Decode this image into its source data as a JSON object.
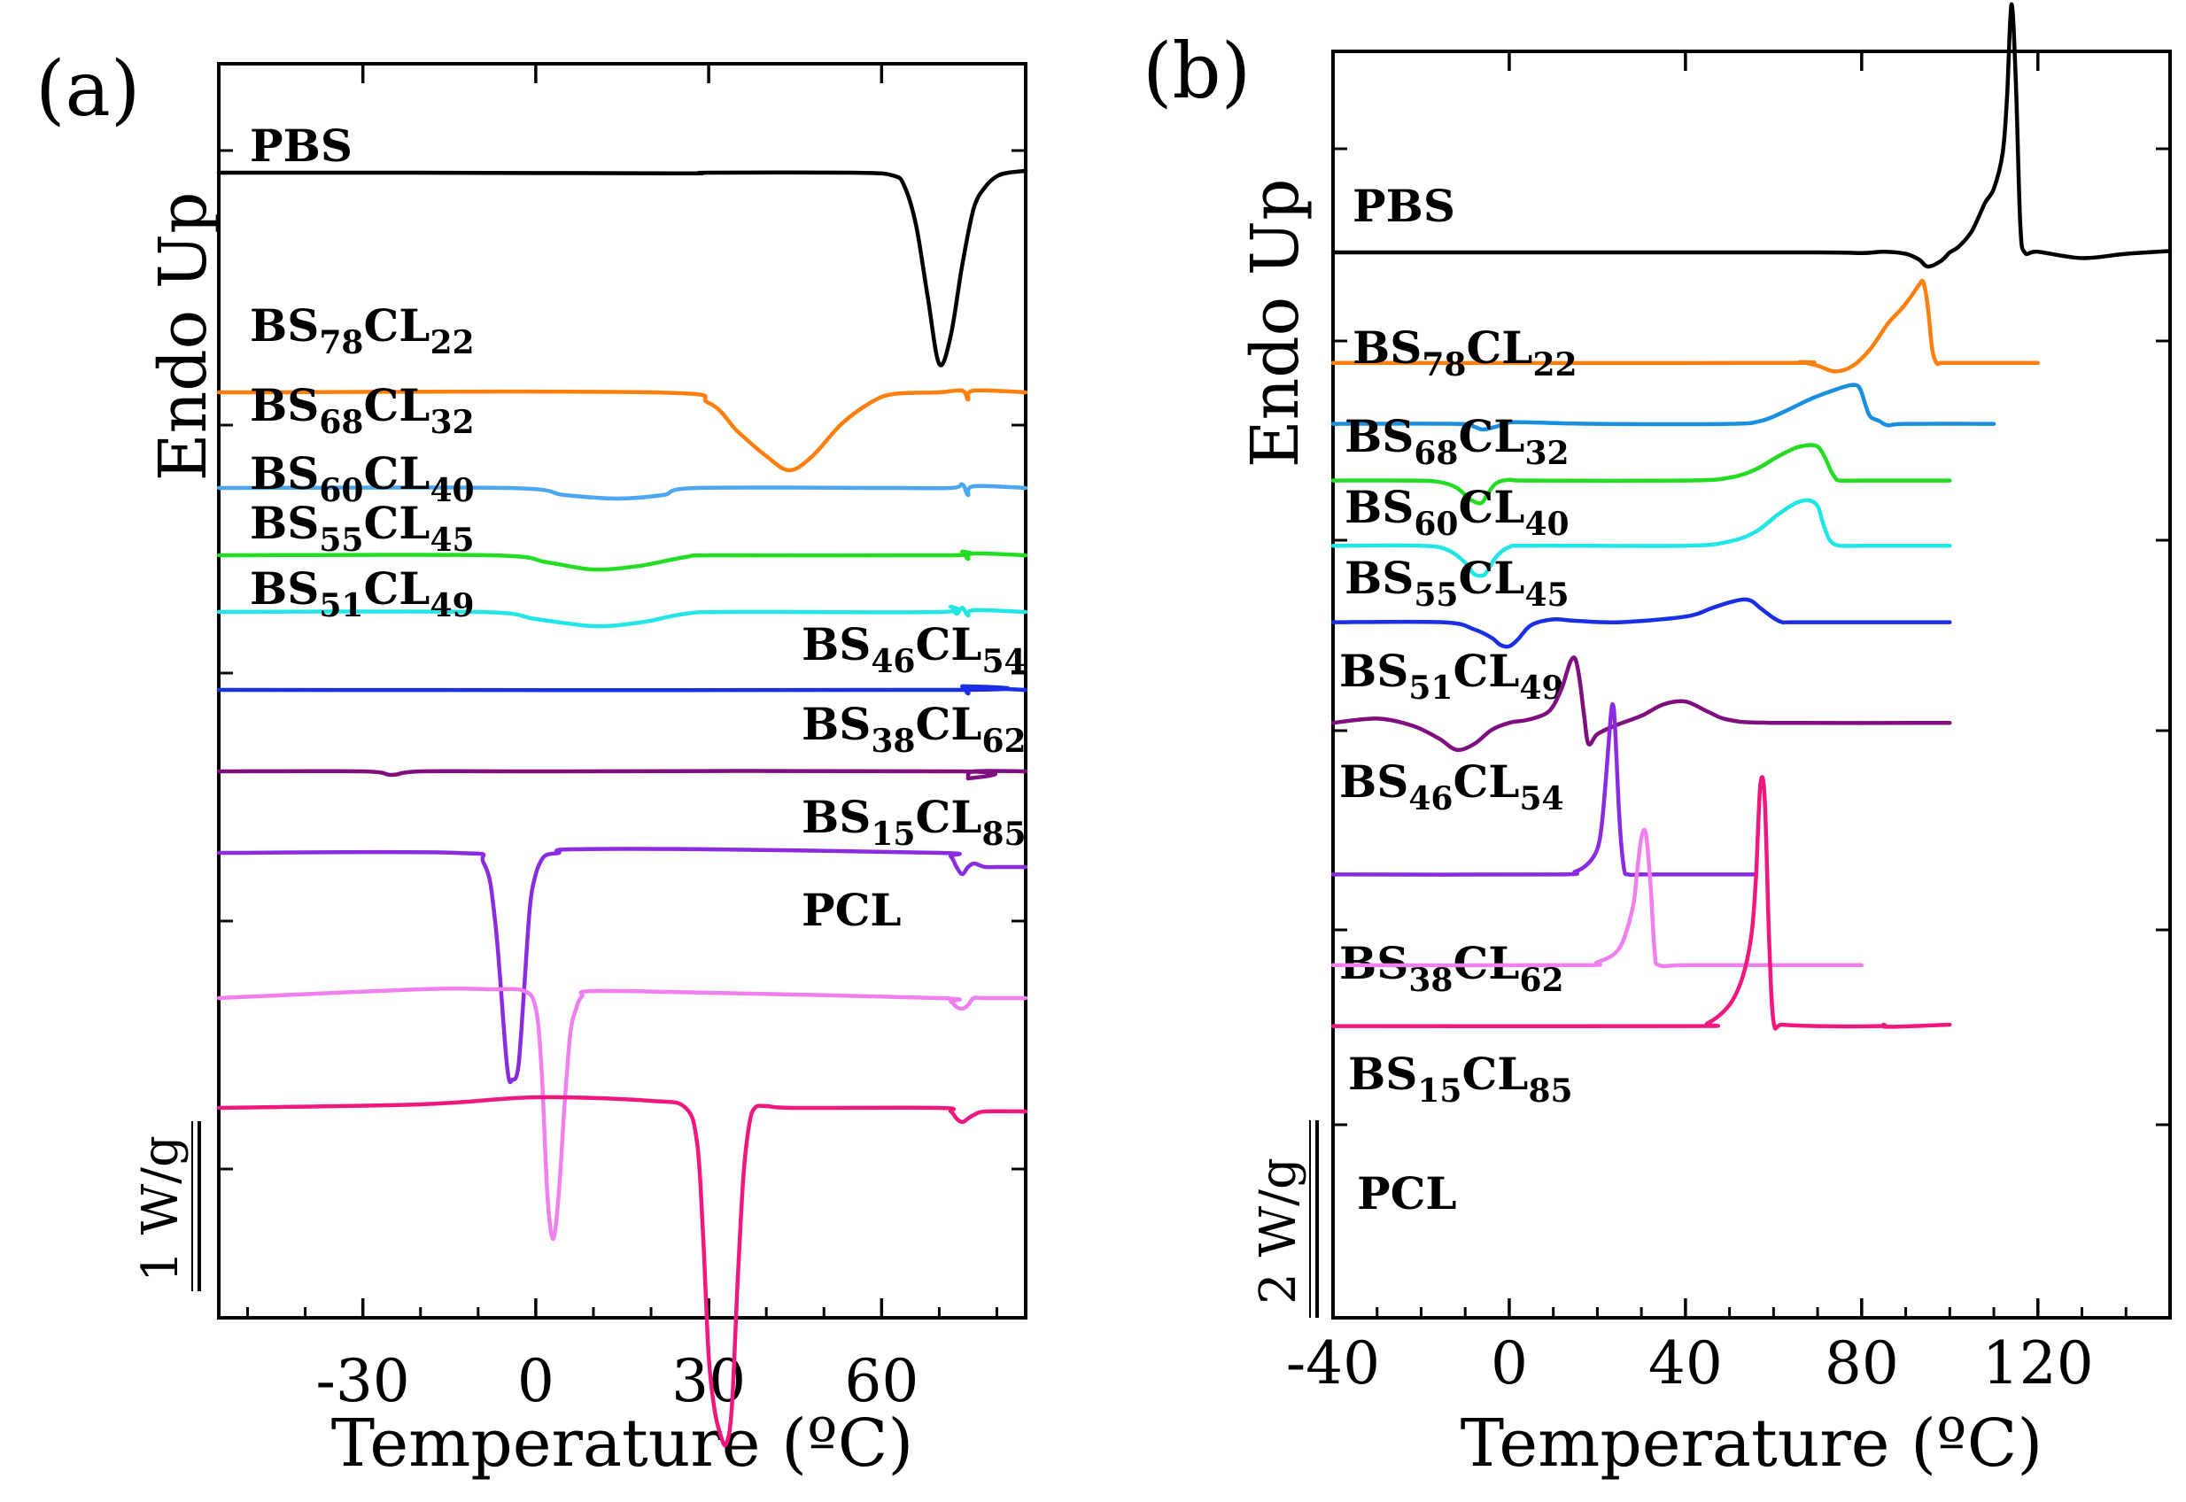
{
  "chart_data": [
    {
      "type": "line",
      "panel": "(a)",
      "xlabel": "Temperature (ºC)",
      "ylabel": "Endo Up",
      "xlim": [
        -55,
        85
      ],
      "xticks": [
        -30,
        0,
        30,
        60
      ],
      "scale_bar": "1 W/g",
      "series": [
        {
          "name": "PBS",
          "base": "PBS",
          "sub1": "",
          "mid": "",
          "sub2": "",
          "color": "#000000",
          "offset": 0,
          "x": [
            -55,
            -20,
            25,
            30,
            55,
            62,
            64,
            66,
            68,
            70,
            72,
            74,
            76,
            78,
            80,
            82,
            85
          ],
          "y": [
            0.0,
            0.0,
            -0.002,
            0.0,
            0.0,
            -0.008,
            -0.04,
            -0.15,
            -0.35,
            -0.54,
            -0.46,
            -0.26,
            -0.1,
            -0.04,
            -0.01,
            0.0,
            0.005
          ]
        },
        {
          "name": "BS78CL22",
          "base": "BS",
          "sub1": "78",
          "mid": "CL",
          "sub2": "22",
          "color": "#ff7f0e",
          "offset": -0.62,
          "x": [
            -55,
            20,
            30,
            35,
            40,
            44,
            48,
            53,
            58,
            62,
            70,
            74,
            75,
            76,
            85
          ],
          "y": [
            0.0,
            0.0,
            -0.03,
            -0.11,
            -0.18,
            -0.22,
            -0.18,
            -0.09,
            -0.03,
            -0.005,
            0.0,
            0.005,
            -0.02,
            0.005,
            0.0
          ]
        },
        {
          "name": "BS68CL32",
          "base": "BS",
          "sub1": "68",
          "mid": "CL",
          "sub2": "32",
          "color": "#4da6f0",
          "offset": -0.89,
          "x": [
            -55,
            -5,
            5,
            14,
            22,
            28,
            60,
            72,
            74,
            75,
            76,
            85
          ],
          "y": [
            0.0,
            0.0,
            -0.02,
            -0.03,
            -0.02,
            0.0,
            0.0,
            0.0,
            0.01,
            -0.02,
            0.005,
            0.0
          ]
        },
        {
          "name": "BS60CL40",
          "base": "BS",
          "sub1": "60",
          "mid": "CL",
          "sub2": "40",
          "color": "#22dd22",
          "offset": -1.08,
          "x": [
            -55,
            -8,
            2,
            10,
            18,
            26,
            32,
            72,
            74,
            75,
            76,
            85
          ],
          "y": [
            0.0,
            0.0,
            -0.02,
            -0.04,
            -0.03,
            -0.005,
            0.0,
            0.0,
            0.01,
            -0.01,
            0.005,
            0.0
          ]
        },
        {
          "name": "BS55CL45",
          "base": "BS",
          "sub1": "55",
          "mid": "CL",
          "sub2": "45",
          "color": "#22e6e6",
          "offset": -1.24,
          "x": [
            -55,
            -10,
            0,
            10,
            18,
            26,
            34,
            70,
            72,
            73,
            74,
            75,
            76,
            85
          ],
          "y": [
            0.0,
            0.0,
            -0.02,
            -0.04,
            -0.03,
            -0.005,
            0.0,
            0.0,
            0.015,
            -0.005,
            0.012,
            -0.01,
            0.005,
            0.0
          ]
        },
        {
          "name": "BS51CL49",
          "base": "BS",
          "sub1": "51",
          "mid": "CL",
          "sub2": "49",
          "color": "#1a2ee6",
          "offset": -1.46,
          "x": [
            -55,
            72,
            74,
            75,
            76,
            85
          ],
          "y": [
            0.0,
            0.0,
            0.01,
            -0.01,
            0.005,
            0.0
          ]
        },
        {
          "name": "BS46CL54",
          "base": "BS",
          "sub1": "46",
          "mid": "CL",
          "sub2": "54",
          "color": "#7f0f7f",
          "offset": -1.69,
          "x": [
            -55,
            -30,
            -25,
            -20,
            0,
            74,
            75,
            76,
            85
          ],
          "y": [
            0.0,
            0.0,
            -0.01,
            0.0,
            0.0,
            0.0,
            -0.02,
            0.0,
            0.0
          ]
        },
        {
          "name": "BS38CL62",
          "base": "BS",
          "sub1": "38",
          "mid": "CL",
          "sub2": "62",
          "color": "#8a2be2",
          "offset": -1.92,
          "x": [
            -55,
            -14,
            -9,
            -7,
            -5,
            -4,
            -3,
            -2,
            -1,
            0,
            1,
            2,
            4,
            6,
            30,
            70,
            72,
            73,
            74,
            75,
            76,
            77,
            78,
            80,
            85
          ],
          "y": [
            0.0,
            0.0,
            -0.03,
            -0.2,
            -0.6,
            -0.64,
            -0.6,
            -0.38,
            -0.15,
            -0.06,
            -0.02,
            -0.005,
            0.0,
            0.01,
            0.01,
            0.0,
            -0.01,
            -0.04,
            -0.06,
            -0.04,
            -0.03,
            -0.035,
            -0.04,
            -0.04,
            -0.04
          ]
        },
        {
          "name": "BS15CL85",
          "base": "BS",
          "sub1": "15",
          "mid": "CL",
          "sub2": "85",
          "color": "#f07ff0",
          "offset": -2.33,
          "x": [
            -55,
            -20,
            -8,
            -2,
            0,
            1,
            2,
            3,
            4,
            5,
            6,
            7,
            8,
            10,
            30,
            70,
            72,
            73,
            74,
            75,
            76,
            78,
            85
          ],
          "y": [
            0.0,
            0.025,
            0.025,
            0.02,
            -0.03,
            -0.2,
            -0.55,
            -0.68,
            -0.55,
            -0.3,
            -0.1,
            -0.03,
            0.005,
            0.02,
            0.015,
            0.0,
            -0.01,
            -0.025,
            -0.03,
            -0.02,
            0.0,
            0.0,
            0.0
          ]
        },
        {
          "name": "PCL",
          "base": "PCL",
          "sub1": "",
          "mid": "",
          "sub2": "",
          "color": "#f0187f",
          "offset": -2.64,
          "x": [
            -55,
            -20,
            0,
            20,
            26,
            28,
            29,
            30,
            31,
            32,
            33,
            34,
            35,
            36,
            37,
            38,
            40,
            45,
            70,
            72,
            73,
            74,
            75,
            76,
            78,
            85
          ],
          "y": [
            0.0,
            0.01,
            0.03,
            0.02,
            0.0,
            -0.1,
            -0.35,
            -0.7,
            -0.85,
            -0.92,
            -0.95,
            -0.85,
            -0.5,
            -0.2,
            -0.05,
            0.0,
            0.005,
            0.0,
            0.0,
            -0.01,
            -0.03,
            -0.04,
            -0.03,
            -0.02,
            -0.01,
            -0.01
          ]
        }
      ]
    },
    {
      "type": "line",
      "panel": "(b)",
      "xlabel": "Temperature (ºC)",
      "ylabel": "Endo Up",
      "xlim": [
        -40,
        150
      ],
      "xticks": [
        -40,
        0,
        40,
        80,
        120
      ],
      "scale_bar": "2 W/g",
      "series": [
        {
          "name": "PBS",
          "base": "PBS",
          "sub1": "",
          "mid": "",
          "sub2": "",
          "color": "#000000",
          "offset": 0,
          "x": [
            -40,
            20,
            70,
            80,
            85,
            90,
            93,
            95,
            98,
            100,
            102,
            105,
            108,
            110,
            112,
            113,
            114,
            115,
            116,
            117,
            120,
            130,
            140,
            150
          ],
          "y": [
            0.0,
            0.0,
            0.0,
            -0.005,
            0.005,
            -0.01,
            -0.05,
            -0.1,
            -0.06,
            0.0,
            0.04,
            0.15,
            0.35,
            0.45,
            0.7,
            1.1,
            1.75,
            1.2,
            0.2,
            0.0,
            0.005,
            -0.04,
            -0.01,
            0.01
          ]
        },
        {
          "name": "BS78CL22",
          "base": "BS",
          "sub1": "78",
          "mid": "CL",
          "sub2": "22",
          "color": "#ff7f0e",
          "offset": -0.78,
          "x": [
            -40,
            60,
            66,
            70,
            74,
            78,
            82,
            86,
            89,
            91,
            93,
            94,
            95,
            96,
            97,
            98,
            100,
            120
          ],
          "y": [
            0.0,
            0.0,
            0.005,
            -0.02,
            -0.06,
            -0.02,
            0.1,
            0.28,
            0.38,
            0.46,
            0.55,
            0.57,
            0.4,
            0.1,
            0.0,
            0.0,
            0.0,
            0.0
          ]
        },
        {
          "name": "BS68CL32",
          "base": "BS",
          "sub1": "68",
          "mid": "CL",
          "sub2": "32",
          "color": "#1a8fe0",
          "offset": -1.21,
          "x": [
            -40,
            -12,
            -8,
            -6,
            -3,
            0,
            5,
            20,
            50,
            57,
            62,
            68,
            73,
            77,
            79,
            80,
            81,
            82,
            84,
            86,
            90,
            110
          ],
          "y": [
            0.0,
            0.0,
            -0.02,
            -0.04,
            -0.02,
            0.01,
            0.01,
            0.0,
            0.0,
            0.02,
            0.08,
            0.17,
            0.23,
            0.27,
            0.27,
            0.22,
            0.12,
            0.05,
            0.02,
            -0.01,
            0.0,
            0.0
          ]
        },
        {
          "name": "BS60CL40",
          "base": "BS",
          "sub1": "60",
          "mid": "CL",
          "sub2": "40",
          "color": "#22dd22",
          "offset": -1.61,
          "x": [
            -40,
            -22,
            -16,
            -12,
            -9,
            -7,
            -6,
            -5,
            -3,
            0,
            5,
            40,
            50,
            56,
            61,
            65,
            68,
            70,
            71,
            72,
            73,
            74,
            75,
            80,
            100
          ],
          "y": [
            0.0,
            0.0,
            -0.01,
            -0.05,
            -0.13,
            -0.16,
            -0.15,
            -0.1,
            -0.02,
            0.005,
            0.0,
            0.0,
            0.02,
            0.08,
            0.17,
            0.23,
            0.25,
            0.24,
            0.2,
            0.14,
            0.07,
            0.02,
            0.0,
            0.0,
            0.0
          ]
        },
        {
          "name": "BS55CL45",
          "base": "BS",
          "sub1": "55",
          "mid": "CL",
          "sub2": "45",
          "color": "#22e6e6",
          "offset": -2.07,
          "x": [
            -40,
            -20,
            -14,
            -10,
            -8,
            -6,
            -5,
            -3,
            0,
            5,
            40,
            50,
            56,
            61,
            65,
            68,
            70,
            71,
            72,
            73,
            75,
            80,
            100
          ],
          "y": [
            0.0,
            0.0,
            -0.03,
            -0.12,
            -0.2,
            -0.21,
            -0.18,
            -0.08,
            -0.01,
            0.0,
            0.0,
            0.03,
            0.1,
            0.22,
            0.3,
            0.32,
            0.28,
            0.18,
            0.09,
            0.03,
            0.0,
            0.0,
            0.0
          ]
        },
        {
          "name": "BS51CL49",
          "base": "BS",
          "sub1": "51",
          "mid": "CL",
          "sub2": "49",
          "color": "#1a2ee6",
          "offset": -2.61,
          "x": [
            -40,
            -15,
            -8,
            -4,
            -2,
            0,
            2,
            5,
            10,
            15,
            25,
            40,
            46,
            50,
            53,
            55,
            57,
            60,
            62,
            64,
            80,
            100
          ],
          "y": [
            0.0,
            0.0,
            -0.05,
            -0.11,
            -0.16,
            -0.17,
            -0.12,
            -0.02,
            0.02,
            0.01,
            0.0,
            0.04,
            0.1,
            0.14,
            0.16,
            0.15,
            0.1,
            0.03,
            0.0,
            0.0,
            0.0,
            0.0
          ]
        },
        {
          "name": "BS46CL54",
          "base": "BS",
          "sub1": "46",
          "mid": "CL",
          "sub2": "54",
          "color": "#7f0f7f",
          "offset": -3.32,
          "x": [
            -40,
            -30,
            -22,
            -16,
            -12,
            -8,
            -4,
            0,
            4,
            8,
            10,
            12,
            13,
            14,
            15,
            16,
            17,
            18,
            20,
            24,
            30,
            35,
            40,
            45,
            50,
            60,
            100
          ],
          "y": [
            0.0,
            0.03,
            -0.02,
            -0.11,
            -0.19,
            -0.15,
            -0.05,
            0.0,
            0.02,
            0.06,
            0.12,
            0.25,
            0.35,
            0.44,
            0.45,
            0.3,
            0.05,
            -0.15,
            -0.08,
            -0.02,
            0.05,
            0.13,
            0.15,
            0.08,
            0.02,
            0.0,
            0.0
          ]
        },
        {
          "name": "BS38CL62",
          "base": "BS",
          "sub1": "38",
          "mid": "CL",
          "sub2": "62",
          "color": "#8a2be2",
          "offset": -4.39,
          "x": [
            -40,
            10,
            15,
            18,
            20,
            21,
            22,
            23,
            23.5,
            24,
            25,
            26,
            27,
            30,
            40,
            56
          ],
          "y": [
            0.0,
            0.0,
            0.02,
            0.08,
            0.18,
            0.35,
            0.7,
            1.1,
            1.2,
            1.05,
            0.4,
            0.05,
            0.0,
            0.0,
            0.0,
            0.0
          ]
        },
        {
          "name": "BS15CL85",
          "base": "BS",
          "sub1": "15",
          "mid": "CL",
          "sub2": "85",
          "color": "#f07ff0",
          "offset": -5.03,
          "x": [
            -40,
            15,
            20,
            25,
            28,
            29,
            30,
            31,
            32,
            33,
            34,
            40,
            60,
            80
          ],
          "y": [
            0.0,
            0.0,
            0.02,
            0.12,
            0.4,
            0.65,
            0.9,
            0.93,
            0.6,
            0.1,
            0.0,
            0.0,
            0.0,
            0.0
          ]
        },
        {
          "name": "PCL",
          "base": "PCL",
          "sub1": "",
          "mid": "",
          "sub2": "",
          "color": "#f0187f",
          "offset": -5.46,
          "x": [
            -40,
            40,
            45,
            50,
            53,
            55,
            56,
            57,
            58,
            59,
            60,
            62,
            70,
            84,
            85,
            86,
            100
          ],
          "y": [
            0.0,
            0.0,
            0.02,
            0.15,
            0.35,
            0.65,
            1.05,
            1.7,
            1.6,
            0.6,
            0.03,
            0.01,
            0.0,
            0.0,
            0.01,
            -0.005,
            0.01
          ]
        }
      ]
    }
  ]
}
